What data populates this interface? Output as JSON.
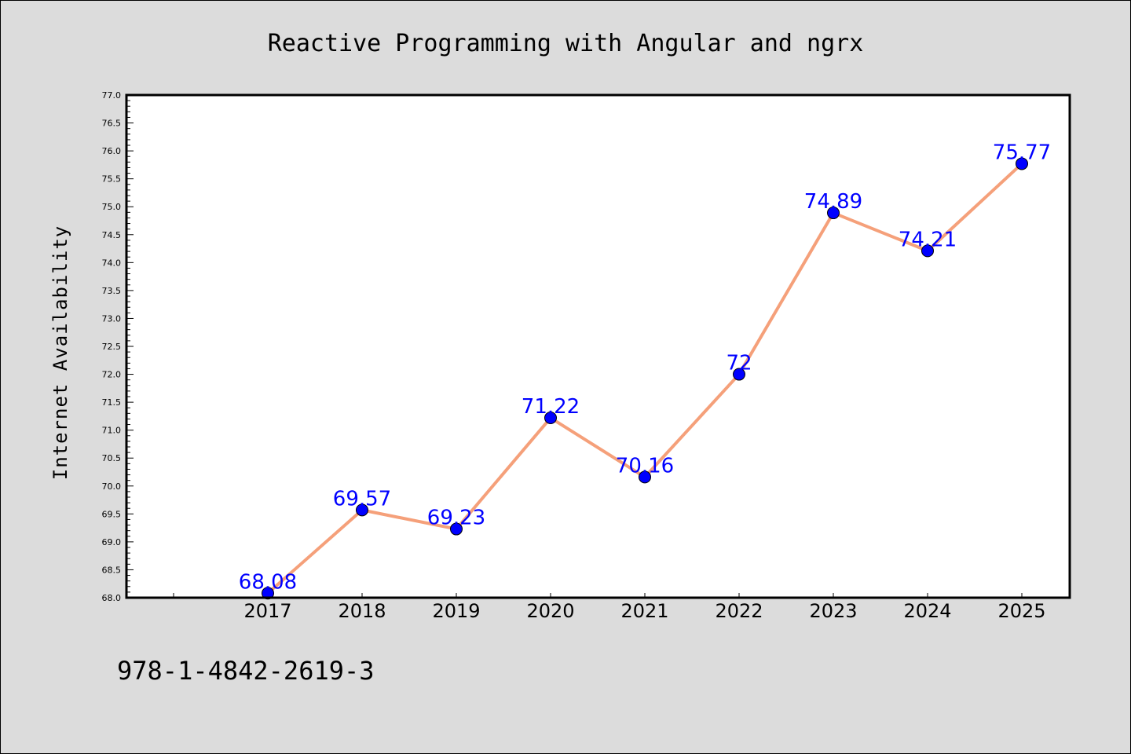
{
  "footer_text": "978-1-4842-2619-3",
  "chart_data": {
    "type": "line",
    "title": "Reactive Programming with Angular and ngrx",
    "xlabel": "",
    "ylabel": "Internet Availability",
    "categories": [
      "2017",
      "2018",
      "2019",
      "2020",
      "2021",
      "2022",
      "2023",
      "2024",
      "2025"
    ],
    "series": [
      {
        "values": [
          68.08,
          69.57,
          69.23,
          71.22,
          70.16,
          72,
          74.89,
          74.21,
          75.77
        ],
        "labels": [
          "68.08",
          "69.57",
          "69.23",
          "71.22",
          "70.16",
          "72",
          "74.89",
          "74.21",
          "75.77"
        ],
        "line_color": "#f5a07a",
        "marker_color": "#0000ff"
      }
    ],
    "ylim": [
      68.0,
      77.0
    ],
    "yticks": [
      "68.0",
      "68.5",
      "69.0",
      "69.5",
      "70.0",
      "70.5",
      "71.0",
      "71.5",
      "72.0",
      "72.5",
      "73.0",
      "73.5",
      "74.0",
      "74.5",
      "75.0",
      "75.5",
      "76.0",
      "76.5",
      "77.0"
    ],
    "grid": false,
    "legend": "none",
    "label_color": "#0000ff",
    "background_color": "#dcdcdc",
    "plot_background_color": "#ffffff"
  }
}
